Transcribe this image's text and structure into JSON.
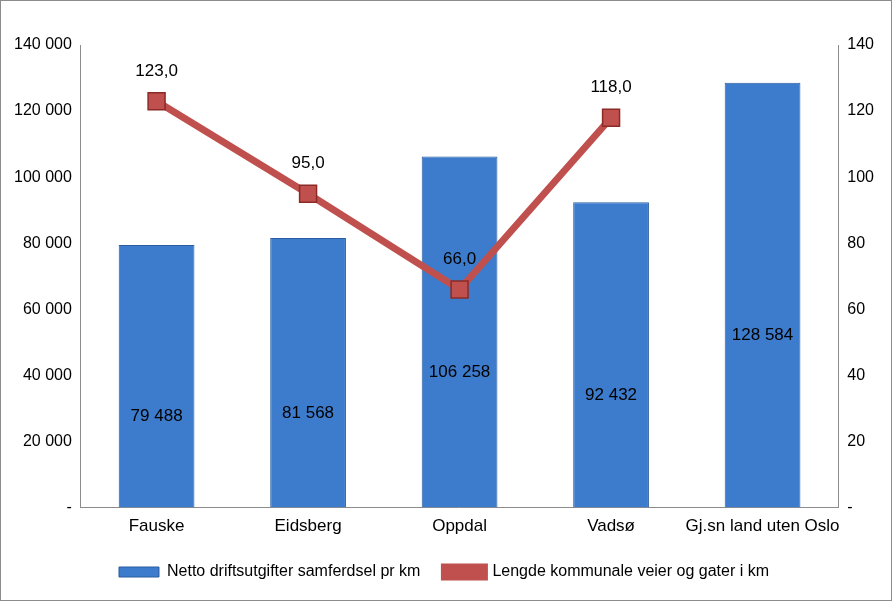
{
  "chart_data": {
    "type": "bar",
    "categories": [
      "Fauske",
      "Eidsberg",
      "Oppdal",
      "Vadsø",
      "Gj.sn land uten Oslo"
    ],
    "series": [
      {
        "name": "Netto driftsutgifter samferdsel pr km",
        "type": "bar",
        "color": "#3d7ccc",
        "values": [
          79488,
          81568,
          106258,
          92432,
          128584
        ],
        "value_labels": [
          "79 488",
          "81 568",
          "106 258",
          "92 432",
          "128 584"
        ]
      },
      {
        "name": "Lengde kommunale veier og gater i km",
        "type": "line",
        "color": "#c0504d",
        "marker": "square",
        "axis": "y2",
        "values": [
          123,
          95,
          66,
          118,
          null
        ],
        "value_labels": [
          "123,0",
          "95,0",
          "66,0",
          "118,0",
          null
        ]
      }
    ],
    "ylim": [
      0,
      140000
    ],
    "yticks": [
      {
        "value": 0,
        "label": "-"
      },
      {
        "value": 20000,
        "label": "20 000"
      },
      {
        "value": 40000,
        "label": "40 000"
      },
      {
        "value": 60000,
        "label": "60 000"
      },
      {
        "value": 80000,
        "label": "80 000"
      },
      {
        "value": 100000,
        "label": "100 000"
      },
      {
        "value": 120000,
        "label": "120 000"
      },
      {
        "value": 140000,
        "label": "140 000"
      }
    ],
    "y2lim": [
      0,
      140
    ],
    "y2ticks": [
      {
        "value": 0,
        "label": "-"
      },
      20,
      40,
      60,
      80,
      100,
      120,
      140
    ],
    "grid": false,
    "legend": "bottom",
    "data_labels": true
  }
}
